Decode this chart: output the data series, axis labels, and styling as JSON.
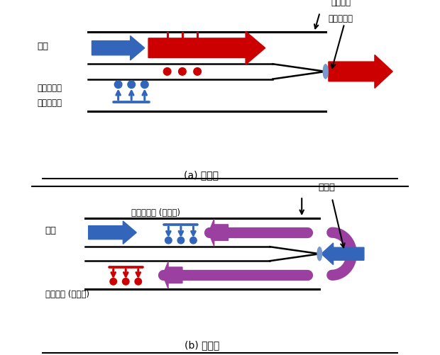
{
  "title_a": "(a) 順接続",
  "title_b": "(b) 逆接続",
  "label_blood_flow_a": "血流",
  "label_impure_a_line1": "未浄化血液",
  "label_impure_a_line2": "（脱血孔）",
  "label_pure_a_line1": "浄化血液",
  "label_pure_a_line2": "（返血孔）",
  "label_blood_flow_b": "血流",
  "label_impure_b": "未浄化血液 (脱血孔)",
  "label_pure_b": "浄化血液 (返血孔)",
  "label_recirculation": "再循環",
  "blue": "#3366bb",
  "red": "#cc0000",
  "purple": "#8b3a8b",
  "black": "#000000",
  "tip_blue": "#7799cc",
  "bg": "#ffffff"
}
